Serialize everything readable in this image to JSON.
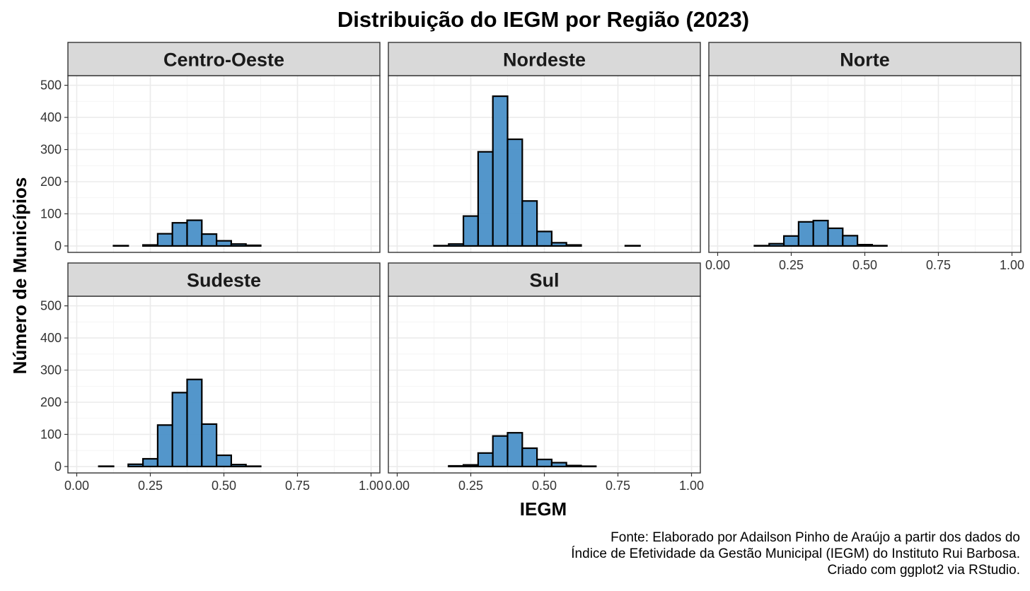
{
  "chart_data": {
    "type": "bar",
    "subtype": "faceted-histogram",
    "title": "Distribuição do IEGM por Região (2023)",
    "xlabel": "IEGM",
    "ylabel": "Número de Municípios",
    "xlim": [
      -0.03,
      1.03
    ],
    "ylim": [
      -20,
      530
    ],
    "x_ticks": [
      0.0,
      0.25,
      0.5,
      0.75,
      1.0
    ],
    "x_tick_labels": [
      "0.00",
      "0.25",
      "0.50",
      "0.75",
      "1.00"
    ],
    "y_ticks": [
      0,
      100,
      200,
      300,
      400,
      500
    ],
    "y_tick_labels": [
      "0",
      "100",
      "200",
      "300",
      "400",
      "500"
    ],
    "bin_width": 0.05,
    "bin_starts": [
      0.025,
      0.075,
      0.125,
      0.175,
      0.225,
      0.275,
      0.325,
      0.375,
      0.425,
      0.475,
      0.525,
      0.575,
      0.625,
      0.675,
      0.725,
      0.775,
      0.825,
      0.875,
      0.925
    ],
    "bar_color": "#4a90c8",
    "bar_outline": "#000000",
    "grid": true,
    "layout": {
      "rows": 2,
      "cols": 3
    },
    "panels": [
      {
        "name": "Centro-Oeste",
        "values": [
          0,
          0,
          1,
          0,
          3,
          38,
          72,
          80,
          37,
          16,
          6,
          2,
          0,
          0,
          0,
          0,
          0,
          0,
          0
        ]
      },
      {
        "name": "Nordeste",
        "values": [
          0,
          0,
          1,
          6,
          93,
          293,
          466,
          332,
          140,
          45,
          10,
          3,
          0,
          0,
          0,
          1,
          0,
          0,
          0
        ]
      },
      {
        "name": "Norte",
        "values": [
          0,
          0,
          1,
          7,
          31,
          75,
          79,
          55,
          32,
          4,
          1,
          0,
          0,
          0,
          0,
          0,
          0,
          0,
          0
        ]
      },
      {
        "name": "Sudeste",
        "values": [
          0,
          1,
          0,
          7,
          24,
          129,
          230,
          271,
          132,
          35,
          6,
          1,
          0,
          0,
          0,
          0,
          0,
          0,
          0
        ]
      },
      {
        "name": "Sul",
        "values": [
          0,
          0,
          0,
          2,
          5,
          42,
          95,
          105,
          57,
          22,
          12,
          3,
          1,
          0,
          0,
          0,
          0,
          0,
          0
        ]
      }
    ]
  },
  "caption": [
    "Fonte: Elaborado por Adailson Pinho de Araújo a partir dos dados do",
    "Índice de Efetividade da Gestão Municipal (IEGM) do Instituto Rui Barbosa.",
    "Criado com ggplot2 via RStudio."
  ]
}
